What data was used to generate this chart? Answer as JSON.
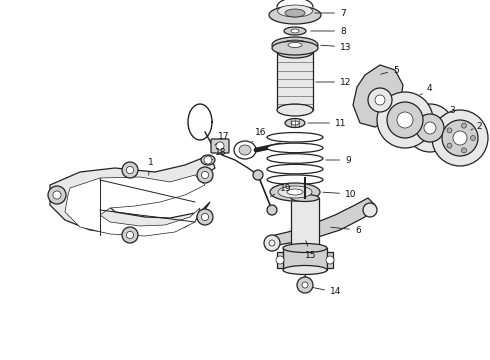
{
  "bg_color": "#ffffff",
  "line_color": "#222222",
  "label_color": "#111111",
  "figsize": [
    4.9,
    3.6
  ],
  "dpi": 100,
  "lw_main": 0.9,
  "lw_thin": 0.5,
  "font_size": 6.5
}
